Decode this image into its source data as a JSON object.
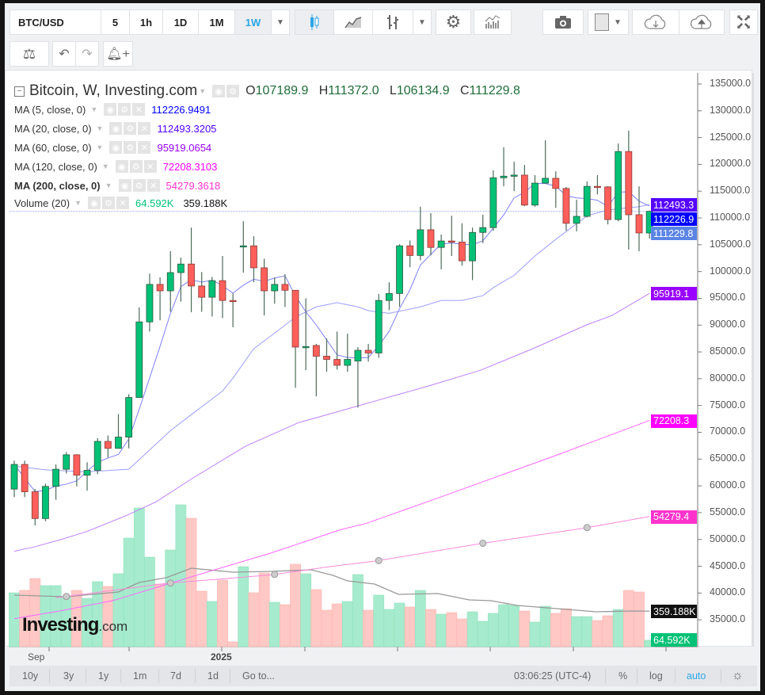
{
  "toolbar": {
    "symbol": "BTC/USD",
    "intervals": [
      "5",
      "1h",
      "1D",
      "1M",
      "1W"
    ],
    "active_interval": "1W"
  },
  "legend": {
    "title": "Bitcoin, W, Investing.com",
    "ohlc": {
      "o_label": "O",
      "o": "107189.9",
      "h_label": "H",
      "h": "111372.0",
      "l_label": "L",
      "l": "106134.9",
      "c_label": "C",
      "c": "111229.8"
    },
    "indicators": [
      {
        "label": "MA (5, close, 0)",
        "value": "112226.9491",
        "color": "#0000ff"
      },
      {
        "label": "MA (20, close, 0)",
        "value": "112493.3205",
        "color": "#5500ff"
      },
      {
        "label": "MA (60, close, 0)",
        "value": "95919.0654",
        "color": "#9900ff"
      },
      {
        "label": "MA (120, close, 0)",
        "value": "72208.3103",
        "color": "#ff00ff"
      },
      {
        "label": "MA (200, close, 0)",
        "value": "54279.3618",
        "color": "#ff33cc"
      }
    ],
    "volume": {
      "label": "Volume (20)",
      "value": "64.592K",
      "ma_value": "359.188K"
    }
  },
  "price_axis": [
    "135000.0",
    "130000.0",
    "125000.0",
    "120000.0",
    "115000.0",
    "110000.0",
    "105000.0",
    "100000.0",
    "95000.0",
    "90000.0",
    "85000.0",
    "80000.0",
    "75000.0",
    "70000.0",
    "65000.0",
    "60000.0",
    "55000.0",
    "50000.0",
    "45000.0",
    "40000.0",
    "35000.0"
  ],
  "price_tags": [
    {
      "text": "112493.3",
      "price": 112493.3,
      "color": "#5500ff"
    },
    {
      "text": "112226.9",
      "price": 112226.9,
      "color": "#0000ff"
    },
    {
      "text": "111229.8",
      "price": 111229.8,
      "color": "#5b84e6"
    },
    {
      "text": "95919.1",
      "price": 95919.1,
      "color": "#9900ff"
    },
    {
      "text": "72208.3",
      "price": 72208.3,
      "color": "#ff00ff"
    },
    {
      "text": "54279.4",
      "price": 54279.4,
      "color": "#ff33cc"
    },
    {
      "text": "359.188K",
      "volume": 359.188,
      "color": "#111111"
    },
    {
      "text": "64.592K",
      "volume": 64.592,
      "color": "#00c176"
    }
  ],
  "time_axis": [
    "Sep",
    "2025"
  ],
  "bottom_bar": {
    "ranges": [
      "10y",
      "3y",
      "1y",
      "1m",
      "7d",
      "1d"
    ],
    "goto": "Go to...",
    "clock": "03:06:25 (UTC-4)",
    "percent": "%",
    "log": "log",
    "auto": "auto"
  },
  "watermark": {
    "brand": "Investing",
    "suffix": ".com"
  },
  "colors": {
    "up": "#00c176",
    "down": "#ff5f5a",
    "vol_up": "#a6ebcd",
    "vol_down": "#ffc8c5",
    "vol_ma": "#999999"
  },
  "chart_data": {
    "type": "candlestick",
    "title": "Bitcoin, W, Investing.com",
    "ylim": [
      35000,
      135000
    ],
    "ohlc": [
      [
        59400,
        64700,
        57900,
        64000
      ],
      [
        64000,
        64700,
        57900,
        58900
      ],
      [
        58900,
        59400,
        52600,
        53900
      ],
      [
        53900,
        60400,
        53400,
        59900
      ],
      [
        59900,
        64000,
        57400,
        63100
      ],
      [
        63100,
        66300,
        62300,
        65800
      ],
      [
        65800,
        65900,
        59900,
        62000
      ],
      [
        62000,
        64400,
        59100,
        62900
      ],
      [
        62900,
        68900,
        62200,
        68300
      ],
      [
        68300,
        69400,
        65300,
        67000
      ],
      [
        67000,
        73400,
        67000,
        69100
      ],
      [
        69100,
        77100,
        67000,
        76500
      ],
      [
        76500,
        93300,
        76500,
        90600
      ],
      [
        90600,
        99600,
        88800,
        97600
      ],
      [
        97600,
        98900,
        90900,
        96400
      ],
      [
        96400,
        103800,
        92500,
        99800
      ],
      [
        99800,
        102600,
        94400,
        101400
      ],
      [
        101400,
        108200,
        92400,
        97300
      ],
      [
        97300,
        99900,
        92500,
        95200
      ],
      [
        95200,
        99000,
        91600,
        98300
      ],
      [
        98300,
        102900,
        91300,
        94600
      ],
      [
        94600,
        95900,
        89600,
        94400
      ],
      [
        104700,
        109400,
        99800,
        104800
      ],
      [
        104800,
        106600,
        98000,
        100700
      ],
      [
        100700,
        102400,
        91800,
        96400
      ],
      [
        96400,
        98900,
        94000,
        97600
      ],
      [
        97600,
        99500,
        93400,
        96500
      ],
      [
        96500,
        96500,
        78300,
        85900
      ],
      [
        85900,
        95000,
        81600,
        86000
      ],
      [
        86200,
        86500,
        76700,
        84200
      ],
      [
        84200,
        87500,
        81300,
        83600
      ],
      [
        83600,
        88800,
        81700,
        82500
      ],
      [
        82500,
        88400,
        81300,
        83600
      ],
      [
        83300,
        85900,
        74600,
        85300
      ],
      [
        85300,
        86500,
        83200,
        84800
      ],
      [
        84800,
        95800,
        83900,
        94600
      ],
      [
        94600,
        98000,
        92800,
        95900
      ],
      [
        95900,
        105100,
        93400,
        104800
      ],
      [
        104800,
        105800,
        100800,
        103000
      ],
      [
        103000,
        112100,
        102100,
        107800
      ],
      [
        107800,
        110900,
        103000,
        104500
      ],
      [
        104500,
        106900,
        100400,
        105700
      ],
      [
        105700,
        110400,
        102900,
        105500
      ],
      [
        105500,
        109000,
        101100,
        102000
      ],
      [
        102000,
        108200,
        98400,
        107300
      ],
      [
        107300,
        110600,
        105300,
        108200
      ],
      [
        108200,
        118900,
        107600,
        117500
      ],
      [
        117500,
        123200,
        115900,
        117800
      ],
      [
        117800,
        120500,
        115000,
        118000
      ],
      [
        118000,
        119900,
        112200,
        112400
      ],
      [
        112400,
        118000,
        112100,
        116500
      ],
      [
        116500,
        124500,
        116400,
        117400
      ],
      [
        117400,
        118700,
        111900,
        115500
      ],
      [
        115500,
        115800,
        107600,
        109000
      ],
      [
        109000,
        113400,
        107500,
        110300
      ],
      [
        110300,
        116800,
        110100,
        115900
      ],
      [
        115900,
        118000,
        114400,
        115800
      ],
      [
        115800,
        115900,
        108800,
        109700
      ],
      [
        109700,
        123900,
        109400,
        122400
      ],
      [
        122400,
        126300,
        104100,
        110600
      ],
      [
        110600,
        115900,
        103800,
        107200
      ],
      [
        107189.9,
        111372.0,
        106134.9,
        111229.8
      ]
    ],
    "volume_k": [
      544,
      568,
      688,
      616,
      616,
      504,
      568,
      488,
      656,
      608,
      736,
      1096,
      1400,
      904,
      632,
      976,
      1432,
      1296,
      560,
      456,
      672,
      48,
      808,
      544,
      744,
      448,
      424,
      832,
      736,
      576,
      368,
      432,
      456,
      728,
      368,
      520,
      376,
      440,
      400,
      568,
      376,
      328,
      344,
      280,
      352,
      256,
      336,
      424,
      416,
      360,
      248,
      408,
      336,
      384,
      304,
      304,
      264,
      312,
      376,
      568,
      552,
      64.592
    ],
    "ma20_points": [
      [
        1,
        63700
      ],
      [
        4,
        63000
      ],
      [
        8,
        62600
      ],
      [
        11,
        63000
      ],
      [
        12,
        63100
      ],
      [
        13,
        64900
      ],
      [
        15,
        68500
      ],
      [
        16,
        70300
      ],
      [
        18,
        73300
      ],
      [
        21,
        77700
      ],
      [
        22,
        80100
      ],
      [
        24,
        85600
      ],
      [
        26,
        88500
      ],
      [
        28,
        91500
      ],
      [
        30,
        93400
      ],
      [
        32,
        94200
      ],
      [
        34,
        93400
      ],
      [
        35,
        92700
      ],
      [
        37,
        92200
      ],
      [
        40,
        93400
      ],
      [
        42,
        94600
      ],
      [
        44,
        94600
      ],
      [
        46,
        95500
      ],
      [
        47,
        97000
      ],
      [
        49,
        99300
      ],
      [
        51,
        102900
      ],
      [
        53,
        106000
      ],
      [
        56,
        110400
      ],
      [
        58,
        111500
      ],
      [
        61,
        112100
      ],
      [
        62,
        112493.3
      ]
    ],
    "ma60_points": [
      [
        1,
        47800
      ],
      [
        2.9,
        48600
      ],
      [
        5.5,
        50000
      ],
      [
        8,
        51500
      ],
      [
        11.8,
        54500
      ],
      [
        14.6,
        57000
      ],
      [
        18.1,
        61400
      ],
      [
        23.2,
        67400
      ],
      [
        28.3,
        71800
      ],
      [
        31.8,
        73700
      ],
      [
        35.4,
        75700
      ],
      [
        40.7,
        78600
      ],
      [
        45.8,
        81600
      ],
      [
        50.8,
        85600
      ],
      [
        55.9,
        90000
      ],
      [
        58.4,
        91800
      ],
      [
        62,
        95919.1
      ]
    ],
    "ma120_points": [
      [
        1,
        35200
      ],
      [
        5.5,
        36700
      ],
      [
        10.5,
        38600
      ],
      [
        15.6,
        41600
      ],
      [
        20.7,
        44600
      ],
      [
        25.7,
        47500
      ],
      [
        32.3,
        51800
      ],
      [
        34.8,
        53000
      ],
      [
        41.2,
        57400
      ],
      [
        52.9,
        65600
      ],
      [
        62,
        72208.3
      ]
    ],
    "ma200_points": [
      [
        5,
        39100
      ],
      [
        15.6,
        41800
      ],
      [
        25.7,
        43400
      ],
      [
        31.6,
        45000
      ],
      [
        35.8,
        46000
      ],
      [
        45.7,
        49200
      ],
      [
        55.7,
        52100
      ],
      [
        62,
        54279.4
      ]
    ],
    "ma200_markers": [
      6,
      16,
      26,
      36,
      46,
      56
    ],
    "volume_ma_points": [
      [
        1,
        520
      ],
      [
        6,
        504
      ],
      [
        11,
        552
      ],
      [
        13,
        648
      ],
      [
        15.6,
        696
      ],
      [
        18,
        792
      ],
      [
        22,
        752
      ],
      [
        25.7,
        760
      ],
      [
        29.5,
        776
      ],
      [
        31.6,
        720
      ],
      [
        33,
        664
      ],
      [
        35.6,
        632
      ],
      [
        37.9,
        528
      ],
      [
        41.7,
        536
      ],
      [
        44.7,
        472
      ],
      [
        46.8,
        464
      ],
      [
        49.3,
        416
      ],
      [
        53.1,
        384
      ],
      [
        56.9,
        352
      ],
      [
        60.2,
        360
      ],
      [
        62,
        359.188
      ]
    ]
  }
}
